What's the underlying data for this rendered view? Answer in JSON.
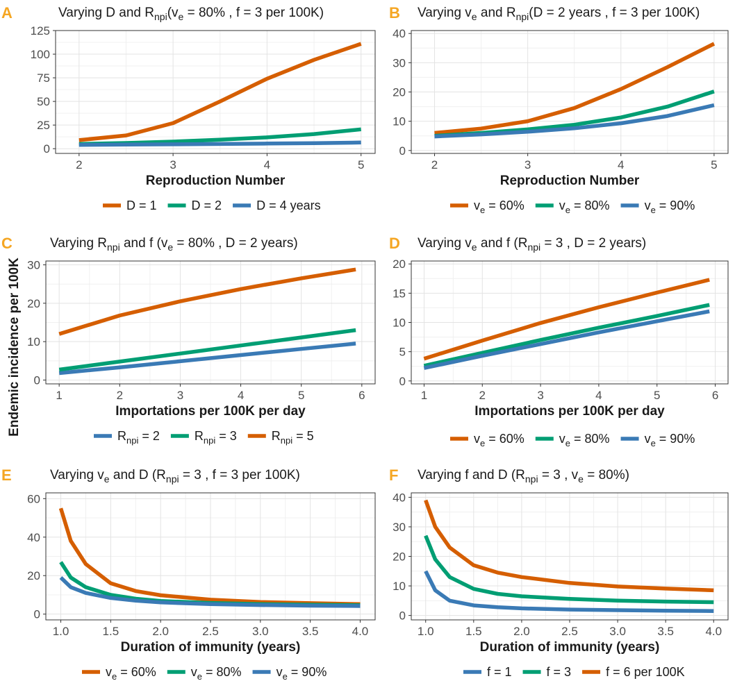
{
  "figure": {
    "ylabel": "Endemic incidence per 100K"
  },
  "colors": {
    "orange": "#d55e00",
    "green": "#009e73",
    "blue": "#3a7ab5",
    "panel_letter": "#f5a623"
  },
  "chart_data": [
    {
      "id": "A",
      "type": "line",
      "title_parts": [
        "Varying D and R",
        "npi",
        "(v",
        "e",
        " = 80% , f = 3 per 100K)"
      ],
      "xlabel": "Reproduction Number",
      "xlim": [
        1.75,
        5.15
      ],
      "ylim": [
        -5,
        125
      ],
      "xticks": [
        2,
        3,
        4,
        5
      ],
      "xtick_labels": [
        "2",
        "3",
        "4",
        "5"
      ],
      "yticks": [
        0,
        25,
        50,
        75,
        100,
        125
      ],
      "ytick_labels": [
        "0",
        "25",
        "50",
        "75",
        "100",
        "125"
      ],
      "x": [
        2,
        2.5,
        3,
        3.5,
        4,
        4.5,
        5
      ],
      "series": [
        {
          "name": "D = 1",
          "legend": [
            "D = 1"
          ],
          "color": "#d55e00",
          "values": [
            9,
            14,
            27,
            50,
            74,
            94,
            111
          ]
        },
        {
          "name": "D = 2",
          "legend": [
            "D = 2"
          ],
          "color": "#009e73",
          "values": [
            5,
            6,
            7.5,
            9.5,
            12,
            15.5,
            20.5
          ]
        },
        {
          "name": "D = 4 years",
          "legend": [
            "D = 4 years"
          ],
          "color": "#3a7ab5",
          "values": [
            4,
            4.3,
            4.6,
            5,
            5.4,
            5.9,
            6.5
          ]
        }
      ]
    },
    {
      "id": "B",
      "type": "line",
      "title_parts": [
        "Varying v",
        "e",
        " and R",
        "npi",
        "(D = 2 years , f = 3 per 100K)"
      ],
      "xlabel": "Reproduction Number",
      "xlim": [
        1.75,
        5.15
      ],
      "ylim": [
        -1,
        41
      ],
      "xticks": [
        2,
        3,
        4,
        5
      ],
      "xtick_labels": [
        "2",
        "3",
        "4",
        "5"
      ],
      "yticks": [
        0,
        10,
        20,
        30,
        40
      ],
      "ytick_labels": [
        "0",
        "10",
        "20",
        "30",
        "40"
      ],
      "x": [
        2,
        2.5,
        3,
        3.5,
        4,
        4.5,
        5
      ],
      "series": [
        {
          "name": "ve = 60%",
          "legend": [
            "v",
            "e",
            " = 60%"
          ],
          "color": "#d55e00",
          "values": [
            6,
            7.5,
            10,
            14.5,
            21,
            28.5,
            36.5
          ]
        },
        {
          "name": "ve = 80%",
          "legend": [
            "v",
            "e",
            " = 80%"
          ],
          "color": "#009e73",
          "values": [
            5,
            6,
            7.2,
            8.8,
            11.3,
            15,
            20.2
          ]
        },
        {
          "name": "ve = 90%",
          "legend": [
            "v",
            "e",
            " = 90%"
          ],
          "color": "#3a7ab5",
          "values": [
            4.8,
            5.5,
            6.4,
            7.6,
            9.3,
            11.8,
            15.5
          ]
        }
      ]
    },
    {
      "id": "C",
      "type": "line",
      "title_parts": [
        "Varying R",
        "npi",
        " and f (v",
        "e",
        " = 80% , D = 2 years)"
      ],
      "xlabel": "Importations per 100K per day",
      "xlim": [
        0.78,
        6.22
      ],
      "ylim": [
        -1,
        31
      ],
      "xticks": [
        1,
        2,
        3,
        4,
        5,
        6
      ],
      "xtick_labels": [
        "1",
        "2",
        "3",
        "4",
        "5",
        "6"
      ],
      "yticks": [
        0,
        10,
        20,
        30
      ],
      "ytick_labels": [
        "0",
        "10",
        "20",
        "30"
      ],
      "x": [
        1,
        2,
        3,
        4,
        5,
        5.9
      ],
      "series": [
        {
          "name": "Rnpi = 2",
          "legend": [
            "R",
            "npi",
            " = 2"
          ],
          "color": "#3a7ab5",
          "values": [
            1.8,
            3.3,
            4.9,
            6.5,
            8.1,
            9.5
          ]
        },
        {
          "name": "Rnpi = 3",
          "legend": [
            "R",
            "npi",
            " = 3"
          ],
          "color": "#009e73",
          "values": [
            2.7,
            4.8,
            6.9,
            9.0,
            11.1,
            13.0
          ]
        },
        {
          "name": "Rnpi = 5",
          "legend": [
            "R",
            "npi",
            " = 5"
          ],
          "color": "#d55e00",
          "values": [
            12,
            16.8,
            20.5,
            23.7,
            26.5,
            28.8
          ]
        }
      ]
    },
    {
      "id": "D",
      "type": "line",
      "title_parts": [
        "Varying v",
        "e",
        " and f (R",
        "npi",
        " = 3 , D = 2 years)"
      ],
      "xlabel": "Importations per 100K per day",
      "xlim": [
        0.78,
        6.22
      ],
      "ylim": [
        -0.5,
        20.5
      ],
      "xticks": [
        1,
        2,
        3,
        4,
        5,
        6
      ],
      "xtick_labels": [
        "1",
        "2",
        "3",
        "4",
        "5",
        "6"
      ],
      "yticks": [
        0,
        5,
        10,
        15,
        20
      ],
      "ytick_labels": [
        "0",
        "5",
        "10",
        "15",
        "20"
      ],
      "x": [
        1,
        2,
        3,
        4,
        5,
        5.9
      ],
      "series": [
        {
          "name": "ve = 60%",
          "legend": [
            "v",
            "e",
            " = 60%"
          ],
          "color": "#d55e00",
          "values": [
            3.8,
            6.9,
            9.9,
            12.6,
            15.1,
            17.3
          ]
        },
        {
          "name": "ve = 80%",
          "legend": [
            "v",
            "e",
            " = 80%"
          ],
          "color": "#009e73",
          "values": [
            2.6,
            4.8,
            7.0,
            9.1,
            11.1,
            13.0
          ]
        },
        {
          "name": "ve = 90%",
          "legend": [
            "v",
            "e",
            " = 90%"
          ],
          "color": "#3a7ab5",
          "values": [
            2.2,
            4.3,
            6.3,
            8.3,
            10.2,
            11.9
          ]
        }
      ]
    },
    {
      "id": "E",
      "type": "line",
      "title_parts": [
        "Varying v",
        "e",
        " and D (R",
        "npi",
        " = 3 , f = 3 per 100K)"
      ],
      "xlabel": "Duration of immunity (years)",
      "xlim": [
        0.85,
        4.15
      ],
      "ylim": [
        -3,
        63
      ],
      "xticks": [
        1,
        1.5,
        2,
        2.5,
        3,
        3.5,
        4
      ],
      "xtick_labels": [
        "1.0",
        "1.5",
        "2.0",
        "2.5",
        "3.0",
        "3.5",
        "4.0"
      ],
      "yticks": [
        0,
        20,
        40,
        60
      ],
      "ytick_labels": [
        "0",
        "20",
        "40",
        "60"
      ],
      "x": [
        1,
        1.1,
        1.25,
        1.5,
        1.75,
        2,
        2.5,
        3,
        3.5,
        4
      ],
      "series": [
        {
          "name": "ve = 60%",
          "legend": [
            "v",
            "e",
            " = 60%"
          ],
          "color": "#d55e00",
          "values": [
            55,
            38,
            26,
            16,
            12,
            9.8,
            7.5,
            6.3,
            5.7,
            5.2
          ]
        },
        {
          "name": "ve = 80%",
          "legend": [
            "v",
            "e",
            " = 80%"
          ],
          "color": "#009e73",
          "values": [
            27,
            19,
            14,
            10,
            8,
            6.8,
            5.8,
            5.2,
            4.9,
            4.6
          ]
        },
        {
          "name": "ve = 90%",
          "legend": [
            "v",
            "e",
            " = 90%"
          ],
          "color": "#3a7ab5",
          "values": [
            19,
            14,
            11,
            8.4,
            7,
            6.1,
            5.2,
            4.7,
            4.4,
            4.2
          ]
        }
      ]
    },
    {
      "id": "F",
      "type": "line",
      "title_parts": [
        "Varying f and D (R",
        "npi",
        " = 3 , v",
        "e",
        " = 80%)"
      ],
      "xlabel": "Duration of immunity (years)",
      "xlim": [
        0.85,
        4.15
      ],
      "ylim": [
        -1.5,
        41.5
      ],
      "xticks": [
        1,
        1.5,
        2,
        2.5,
        3,
        3.5,
        4
      ],
      "xtick_labels": [
        "1.0",
        "1.5",
        "2.0",
        "2.5",
        "3.0",
        "3.5",
        "4.0"
      ],
      "yticks": [
        0,
        10,
        20,
        30,
        40
      ],
      "ytick_labels": [
        "0",
        "10",
        "20",
        "30",
        "40"
      ],
      "x": [
        1,
        1.1,
        1.25,
        1.5,
        1.75,
        2,
        2.5,
        3,
        3.5,
        4
      ],
      "series": [
        {
          "name": "f = 1",
          "legend": [
            "f = 1"
          ],
          "color": "#3a7ab5",
          "values": [
            15,
            8.5,
            5,
            3.4,
            2.8,
            2.4,
            2,
            1.8,
            1.6,
            1.5
          ]
        },
        {
          "name": "f = 3",
          "legend": [
            "f = 3"
          ],
          "color": "#009e73",
          "values": [
            27,
            19,
            13,
            9,
            7.3,
            6.5,
            5.6,
            5,
            4.7,
            4.5
          ]
        },
        {
          "name": "f = 6 per 100K",
          "legend": [
            "f = 6 per 100K"
          ],
          "color": "#d55e00",
          "values": [
            39,
            30,
            23,
            17,
            14.5,
            13,
            11,
            9.8,
            9.1,
            8.5
          ]
        }
      ]
    }
  ]
}
